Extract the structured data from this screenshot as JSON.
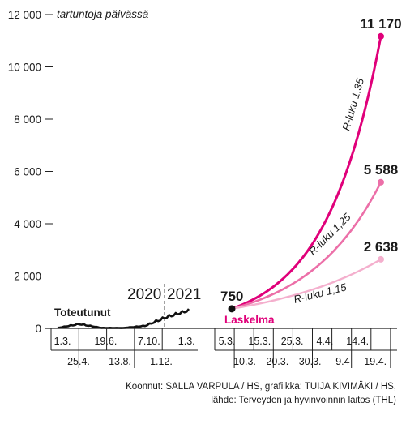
{
  "chart_data": {
    "type": "line",
    "title": "",
    "ylabel": "tartuntoja päivässä",
    "ylim": [
      0,
      12000
    ],
    "yticks": [
      0,
      2000,
      4000,
      6000,
      8000,
      10000,
      12000
    ],
    "ytick_labels": [
      "0",
      "2 000",
      "4 000",
      "6 000",
      "8 000",
      "10 000",
      "12 000"
    ],
    "colors": {
      "actual": "#111111",
      "r135": "#e0007a",
      "r125": "#ec6fa8",
      "r115": "#f4afcd",
      "laskelma_label": "#e0007a",
      "grid": "#222222"
    },
    "actual_panel": {
      "label": "Toteutunut",
      "years": [
        "2020",
        "2021"
      ],
      "x_ticks_top": [
        "1.3.",
        "19.6.",
        "7.10.",
        "1.3."
      ],
      "x_ticks_bottom": [
        "25.4.",
        "13.8.",
        "1.12."
      ],
      "series": {
        "name": "Toteutunut",
        "x": [
          "1.3.",
          "25.4.",
          "19.6.",
          "13.8.",
          "7.10.",
          "1.12.",
          "1.3."
        ],
        "values": [
          20,
          170,
          20,
          15,
          100,
          450,
          700
        ]
      }
    },
    "forecast_panel": {
      "label": "Laskelma",
      "start_value": 750,
      "start_label": "750",
      "x_ticks_top": [
        "5.3.",
        "15.3.",
        "25.3.",
        "4.4.",
        "14.4."
      ],
      "x_ticks_bottom": [
        "10.3.",
        "20.3.",
        "30.3.",
        "9.4",
        "19.4."
      ],
      "series": [
        {
          "name": "R-luku 1,35",
          "end_value": 11170,
          "end_label": "11 170"
        },
        {
          "name": "R-luku 1,25",
          "end_value": 5588,
          "end_label": "5 588"
        },
        {
          "name": "R-luku 1,15",
          "end_value": 2638,
          "end_label": "2 638"
        }
      ]
    }
  },
  "credits": {
    "line1": "Koonnut: SALLA VARPULA / HS, grafiikka: TUIJA KIVIMÄKI / HS,",
    "line2": "lähde: Terveyden ja hyvinvoinnin laitos (THL)"
  }
}
